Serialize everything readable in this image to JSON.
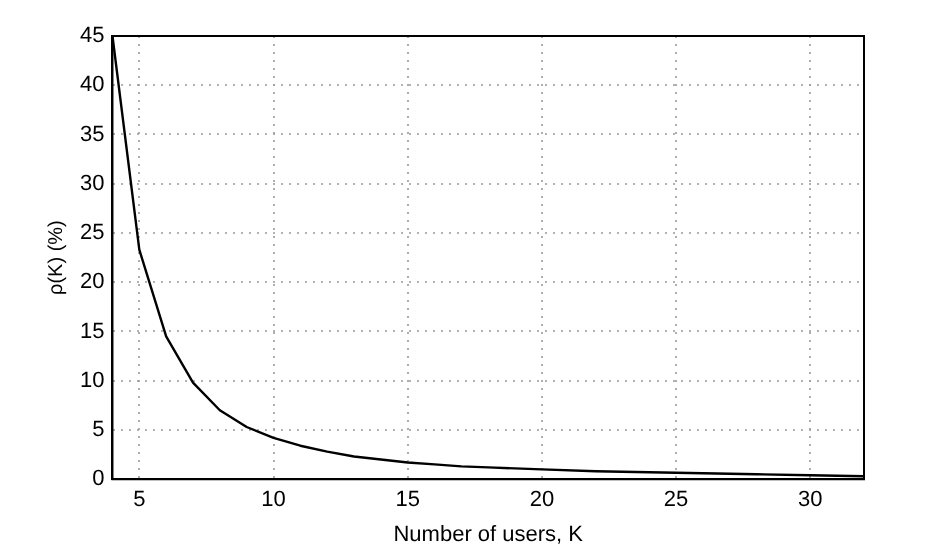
{
  "chart_data": {
    "type": "line",
    "xlabel": "Number of users, K",
    "ylabel": "ρ(K) (%)",
    "x": [
      4,
      5,
      6,
      7,
      8,
      9,
      10,
      11,
      12,
      13,
      14,
      15,
      16,
      17,
      18,
      20,
      22,
      24,
      26,
      28,
      30,
      32
    ],
    "series": [
      {
        "color": "#000000",
        "values": [
          45,
          23.3,
          14.5,
          9.8,
          7.0,
          5.3,
          4.2,
          3.4,
          2.8,
          2.3,
          2.0,
          1.7,
          1.5,
          1.3,
          1.2,
          1.0,
          0.8,
          0.7,
          0.6,
          0.5,
          0.4,
          0.3
        ]
      }
    ],
    "xlim": [
      4,
      32
    ],
    "xticks": [
      5,
      10,
      15,
      20,
      25,
      30
    ],
    "ylim": [
      0,
      45
    ],
    "yticks": [
      0,
      5,
      10,
      15,
      20,
      25,
      30,
      35,
      40,
      45
    ],
    "grid": true,
    "legend": false,
    "marker": "none",
    "line_style": "solid"
  }
}
